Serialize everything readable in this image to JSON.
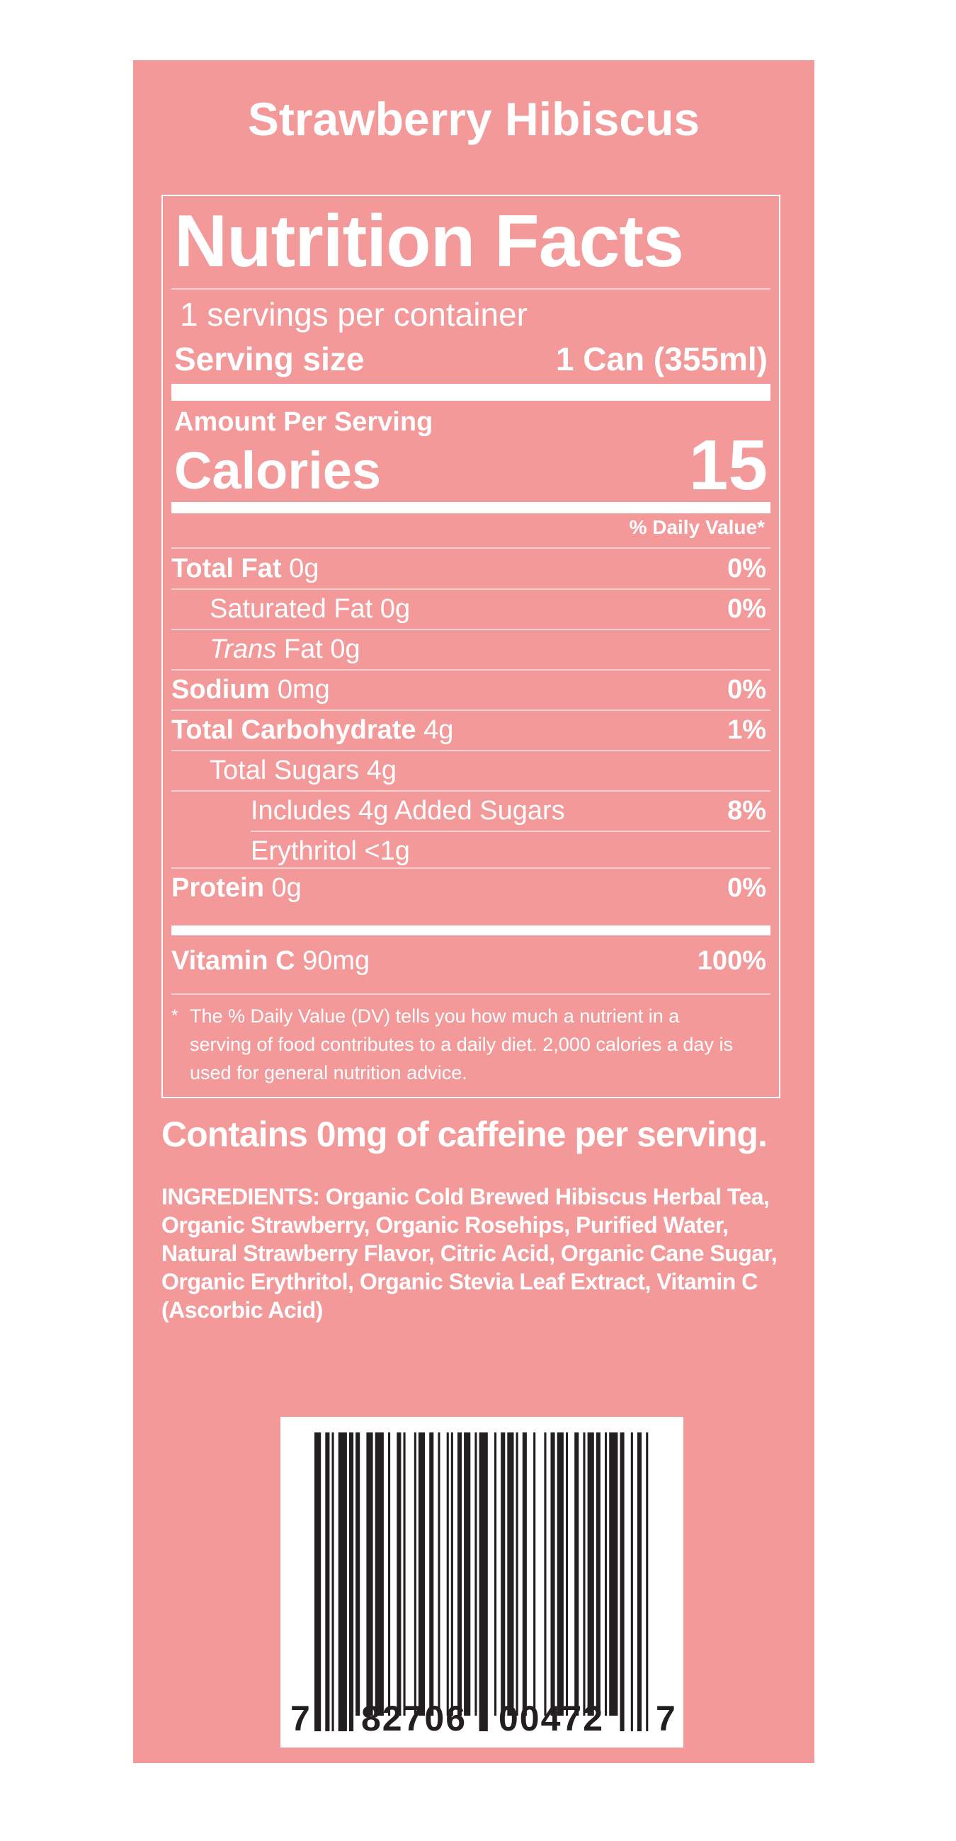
{
  "product": {
    "title": "Strawberry Hibiscus"
  },
  "nutrition": {
    "heading": "Nutrition Facts",
    "servings_per_container": "1 servings per container",
    "serving_size_label": "Serving size",
    "serving_size_value": "1 Can (355ml)",
    "amount_per_serving": "Amount Per Serving",
    "calories_label": "Calories",
    "calories_value": "15",
    "dv_header": "% Daily Value*",
    "rows": [
      {
        "bold": "Total Fat",
        "name": "",
        "amount": " 0g",
        "dv": "0%",
        "indent": 0
      },
      {
        "bold": "",
        "name": "Saturated Fat",
        "amount": " 0g",
        "dv": "0%",
        "indent": 1
      },
      {
        "bold": "",
        "italic": "Trans",
        "name": " Fat",
        "amount": " 0g",
        "dv": "",
        "indent": 1
      },
      {
        "bold": "Sodium",
        "name": "",
        "amount": " 0mg",
        "dv": "0%",
        "indent": 0
      },
      {
        "bold": "Total Carbohydrate",
        "name": "",
        "amount": " 4g",
        "dv": "1%",
        "indent": 0
      },
      {
        "bold": "",
        "name": "Total Sugars",
        "amount": " 4g",
        "dv": "",
        "indent": 1
      },
      {
        "bold": "",
        "name": "Includes 4g Added Sugars",
        "amount": "",
        "dv": "8%",
        "indent": 2
      },
      {
        "bold": "",
        "name": "Erythritol",
        "amount": " <1g",
        "dv": "",
        "indent": 2
      },
      {
        "bold": "Protein",
        "name": "",
        "amount": " 0g",
        "dv": "0%",
        "indent": 0
      }
    ],
    "vitamin": {
      "bold": "Vitamin C",
      "amount": " 90mg",
      "dv": "100%"
    },
    "footnote_star": "*",
    "footnote": "The % Daily Value (DV) tells you how much a nutrient in a serving of food contributes to a daily diet. 2,000 calories a day is used for general nutrition advice."
  },
  "caffeine_statement": "Contains 0mg of caffeine per serving.",
  "ingredients": "INGREDIENTS: Organic Cold Brewed Hibiscus Herbal  Tea, Organic Strawberry, Organic Rosehips, Purified Water, Natural Strawberry Flavor, Citric Acid, Organic Cane Sugar, Organic Erythritol, Organic Stevia Leaf Extract, Vitamin C (Ascorbic Acid)",
  "barcode": {
    "digit_left": "7",
    "group_left": "82706",
    "group_right": "00472",
    "digit_right": "7"
  },
  "colors": {
    "panel": "#f4999a",
    "text": "#ffffff",
    "barcode_ink": "#231f20"
  }
}
